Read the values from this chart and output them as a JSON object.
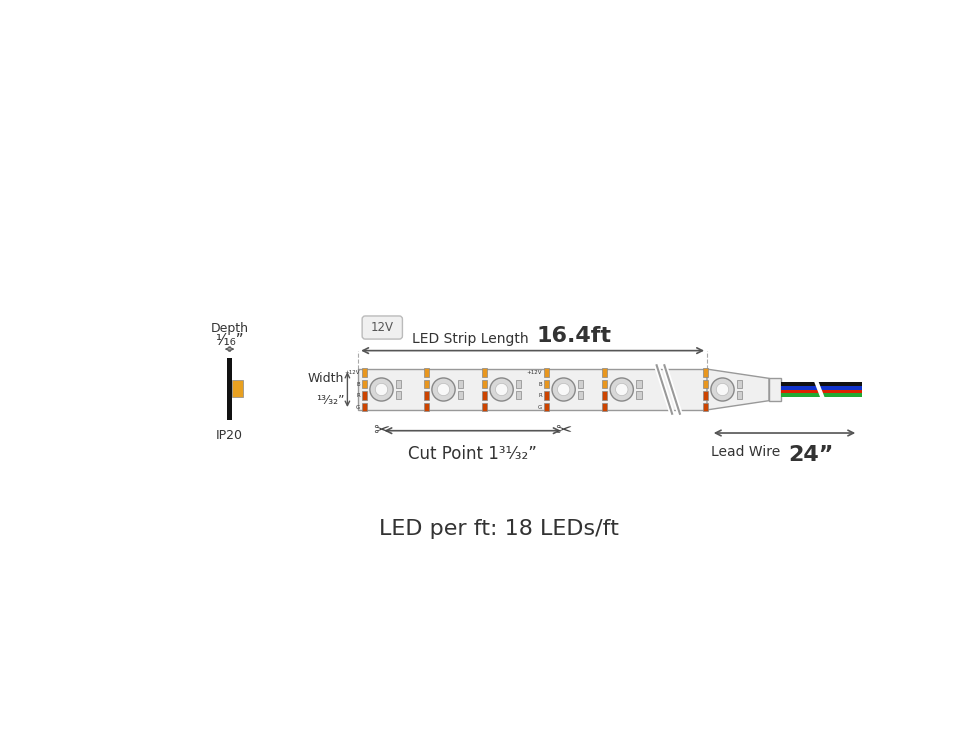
{
  "title_bottom": "LED per ft: 18 LEDs/ft",
  "strip_length_label": "LED Strip Length ",
  "strip_length_num": "16.4ft",
  "cut_point_label": "Cut Point 1³¹⁄₃₂”",
  "lead_wire_label": "Lead Wire ",
  "lead_wire_num": "24”",
  "depth_label_top": "Depth",
  "depth_label_frac": "¹⁄₁₆”",
  "width_label_top": "Width",
  "width_label_frac": "¹³⁄₃₂”",
  "voltage_label": "12V",
  "ip_label": "IP20",
  "pad_color_12v": "#e8961e",
  "pad_color_b": "#e8961e",
  "pad_color_r": "#cc4400",
  "pad_color_g": "#cc4400",
  "wire_red": "#dd2200",
  "wire_green": "#22aa33",
  "wire_blue": "#1133cc",
  "wire_black": "#111111",
  "text_color": "#333333",
  "dim_color": "#555555",
  "strip_fill": "#f0f0f0",
  "strip_edge": "#999999",
  "led_fill": "#d8d8d8",
  "led_inner": "#f8f8f8",
  "pad_fill_gray": "#d0d0d0",
  "connector_fill": "#f0f0f0",
  "connector_edge": "#999999"
}
